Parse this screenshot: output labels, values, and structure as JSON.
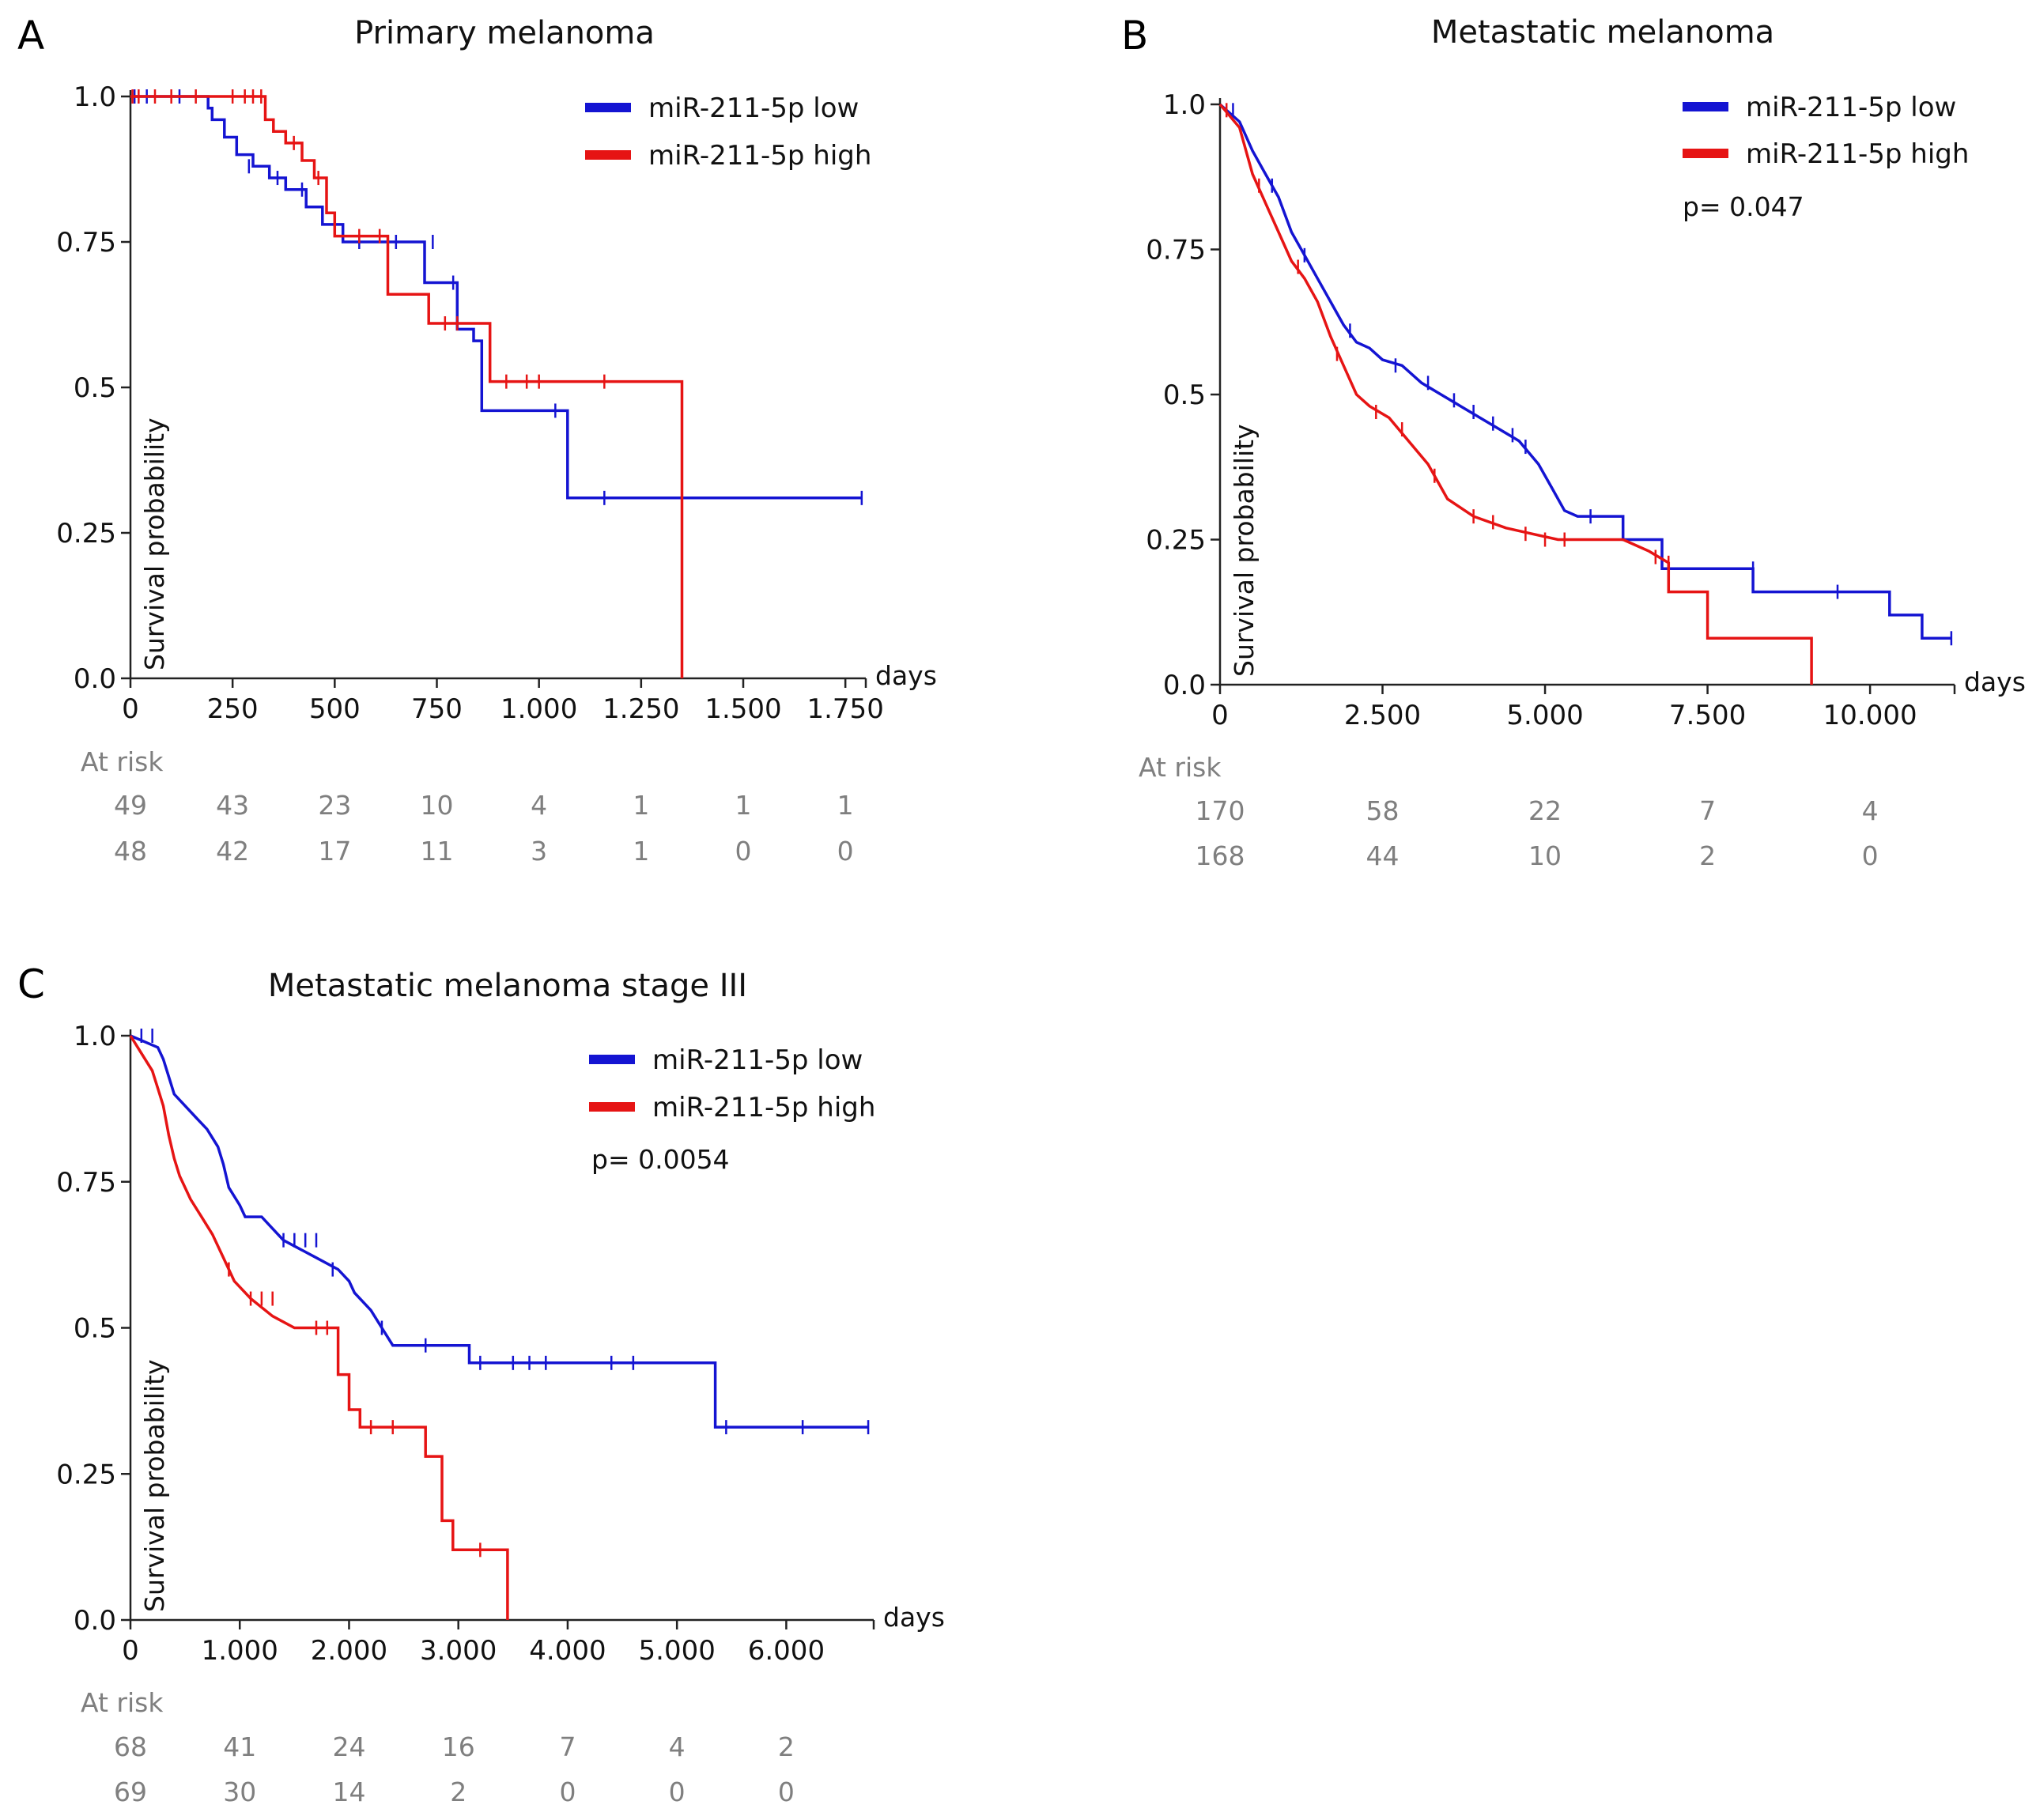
{
  "colors": {
    "low": "#1414d2",
    "high": "#e61414",
    "axis": "#222222",
    "risk": "#7f7f7f"
  },
  "legend": {
    "low_label": "miR-211-5p low",
    "high_label": "miR-211-5p high"
  },
  "chart_data": [
    {
      "type": "line",
      "panel": "A",
      "title": "Primary melanoma",
      "xlabel": "days",
      "ylabel": "Survival probability",
      "xlim": [
        0,
        1800
      ],
      "ylim": [
        0,
        1
      ],
      "xticks": [
        0,
        250,
        500,
        750,
        1000,
        1250,
        1500,
        1750
      ],
      "xtick_labels": [
        "0",
        "250",
        "500",
        "750",
        "1.000",
        "1.250",
        "1.500",
        "1.750"
      ],
      "yticks": [
        0,
        0.25,
        0.5,
        0.75,
        1.0
      ],
      "ytick_labels": [
        "0.0",
        "0.25",
        "0.5",
        "0.75",
        "1.0"
      ],
      "p_value": "",
      "series": [
        {
          "name": "miR-211-5p low",
          "color_key": "low",
          "x": [
            0,
            190,
            190,
            200,
            200,
            230,
            230,
            260,
            260,
            300,
            300,
            340,
            340,
            380,
            380,
            430,
            430,
            470,
            470,
            520,
            520,
            720,
            720,
            800,
            800,
            840,
            840,
            860,
            860,
            1070,
            1070,
            1790
          ],
          "y": [
            1.0,
            1.0,
            0.98,
            0.98,
            0.96,
            0.96,
            0.93,
            0.93,
            0.9,
            0.9,
            0.88,
            0.88,
            0.86,
            0.86,
            0.84,
            0.84,
            0.81,
            0.81,
            0.78,
            0.78,
            0.75,
            0.75,
            0.68,
            0.68,
            0.6,
            0.6,
            0.58,
            0.58,
            0.46,
            0.46,
            0.31,
            0.31
          ],
          "censor_x": [
            10,
            40,
            120,
            290,
            360,
            420,
            480,
            560,
            650,
            740,
            790,
            1040,
            1160,
            1790
          ],
          "censor_y": [
            1.0,
            1.0,
            1.0,
            0.88,
            0.86,
            0.84,
            0.81,
            0.75,
            0.75,
            0.75,
            0.68,
            0.46,
            0.31,
            0.31
          ]
        },
        {
          "name": "miR-211-5p high",
          "color_key": "high",
          "x": [
            0,
            330,
            330,
            350,
            350,
            380,
            380,
            420,
            420,
            450,
            450,
            480,
            480,
            500,
            500,
            630,
            630,
            730,
            730,
            880,
            880,
            1350,
            1350
          ],
          "y": [
            1.0,
            1.0,
            0.96,
            0.96,
            0.94,
            0.94,
            0.92,
            0.92,
            0.89,
            0.89,
            0.86,
            0.86,
            0.8,
            0.8,
            0.76,
            0.76,
            0.66,
            0.66,
            0.61,
            0.61,
            0.51,
            0.51,
            0.0
          ],
          "censor_x": [
            5,
            20,
            60,
            100,
            160,
            250,
            280,
            300,
            320,
            400,
            460,
            560,
            610,
            770,
            800,
            920,
            970,
            1000,
            1160
          ],
          "censor_y": [
            1.0,
            1.0,
            1.0,
            1.0,
            1.0,
            1.0,
            1.0,
            1.0,
            1.0,
            0.92,
            0.86,
            0.76,
            0.76,
            0.61,
            0.61,
            0.51,
            0.51,
            0.51,
            0.51
          ]
        }
      ],
      "at_risk": {
        "label": "At risk",
        "times": [
          0,
          250,
          500,
          750,
          1000,
          1250,
          1500,
          1750
        ],
        "rows": [
          [
            "49",
            "43",
            "23",
            "10",
            "4",
            "1",
            "1",
            "1"
          ],
          [
            "48",
            "42",
            "17",
            "11",
            "3",
            "1",
            "0",
            "0"
          ]
        ]
      }
    },
    {
      "type": "line",
      "panel": "B",
      "title": "Metastatic melanoma",
      "xlabel": "days",
      "ylabel": "Survival probability",
      "xlim": [
        0,
        11300
      ],
      "ylim": [
        0,
        1
      ],
      "xticks": [
        0,
        2500,
        5000,
        7500,
        10000
      ],
      "xtick_labels": [
        "0",
        "2.500",
        "5.000",
        "7.500",
        "10.000"
      ],
      "yticks": [
        0,
        0.25,
        0.5,
        0.75,
        1.0
      ],
      "ytick_labels": [
        "0.0",
        "0.25",
        "0.5",
        "0.75",
        "1.0"
      ],
      "p_value": "p= 0.047",
      "series": [
        {
          "name": "miR-211-5p low",
          "color_key": "low",
          "x": [
            0,
            300,
            500,
            700,
            900,
            1100,
            1300,
            1500,
            1700,
            1900,
            2100,
            2300,
            2500,
            2800,
            3100,
            3400,
            3700,
            4000,
            4300,
            4600,
            4900,
            5100,
            5300,
            5500,
            6200,
            6200,
            6800,
            6800,
            8200,
            8200,
            10300,
            10300,
            10800,
            10800,
            11250,
            11250
          ],
          "y": [
            1.0,
            0.97,
            0.92,
            0.88,
            0.84,
            0.78,
            0.74,
            0.7,
            0.66,
            0.62,
            0.59,
            0.58,
            0.56,
            0.55,
            0.52,
            0.5,
            0.48,
            0.46,
            0.44,
            0.42,
            0.38,
            0.34,
            0.3,
            0.29,
            0.29,
            0.25,
            0.25,
            0.2,
            0.2,
            0.16,
            0.16,
            0.12,
            0.12,
            0.08,
            0.08,
            0.08
          ],
          "censor_x": [
            200,
            800,
            1300,
            2000,
            2700,
            3200,
            3600,
            3900,
            4200,
            4500,
            4700,
            5700,
            6900,
            8200,
            9500,
            11250
          ],
          "censor_y": [
            0.99,
            0.86,
            0.74,
            0.61,
            0.55,
            0.52,
            0.49,
            0.47,
            0.45,
            0.43,
            0.41,
            0.29,
            0.2,
            0.2,
            0.16,
            0.08
          ]
        },
        {
          "name": "miR-211-5p high",
          "color_key": "high",
          "x": [
            0,
            300,
            500,
            700,
            900,
            1100,
            1300,
            1500,
            1700,
            1900,
            2100,
            2300,
            2600,
            2900,
            3200,
            3500,
            3900,
            4400,
            4800,
            5200,
            6200,
            6600,
            6900,
            6900,
            7000,
            7000,
            7500,
            7500,
            9100,
            9100
          ],
          "y": [
            1.0,
            0.96,
            0.88,
            0.83,
            0.78,
            0.73,
            0.7,
            0.66,
            0.6,
            0.55,
            0.5,
            0.48,
            0.46,
            0.42,
            0.38,
            0.32,
            0.29,
            0.27,
            0.26,
            0.25,
            0.25,
            0.23,
            0.21,
            0.16,
            0.16,
            0.16,
            0.16,
            0.08,
            0.08,
            0.0
          ],
          "censor_x": [
            100,
            600,
            1200,
            1800,
            2400,
            2800,
            3300,
            3900,
            4200,
            4700,
            5000,
            5300,
            6700,
            6900
          ],
          "censor_y": [
            0.99,
            0.86,
            0.72,
            0.57,
            0.47,
            0.44,
            0.36,
            0.29,
            0.28,
            0.26,
            0.25,
            0.25,
            0.22,
            0.21
          ]
        }
      ],
      "at_risk": {
        "label": "At risk",
        "times": [
          0,
          2500,
          5000,
          7500,
          10000
        ],
        "rows": [
          [
            "170",
            "58",
            "22",
            "7",
            "4"
          ],
          [
            "168",
            "44",
            "10",
            "2",
            "0"
          ]
        ]
      }
    },
    {
      "type": "line",
      "panel": "C",
      "title": "Metastatic melanoma stage III",
      "xlabel": "days",
      "ylabel": "Survival probability",
      "xlim": [
        0,
        6800
      ],
      "ylim": [
        0,
        1
      ],
      "xticks": [
        0,
        1000,
        2000,
        3000,
        4000,
        5000,
        6000
      ],
      "xtick_labels": [
        "0",
        "1.000",
        "2.000",
        "3.000",
        "4.000",
        "5.000",
        "6.000"
      ],
      "yticks": [
        0,
        0.25,
        0.5,
        0.75,
        1.0
      ],
      "ytick_labels": [
        "0.0",
        "0.25",
        "0.5",
        "0.75",
        "1.0"
      ],
      "p_value": "p= 0.0054",
      "series": [
        {
          "name": "miR-211-5p low",
          "color_key": "low",
          "x": [
            0,
            250,
            300,
            350,
            400,
            500,
            600,
            700,
            800,
            850,
            900,
            1000,
            1050,
            1200,
            1300,
            1400,
            1700,
            1900,
            2000,
            2050,
            2200,
            2300,
            2400,
            2500,
            3100,
            3100,
            5350,
            5350,
            6750
          ],
          "y": [
            1.0,
            0.98,
            0.96,
            0.93,
            0.9,
            0.88,
            0.86,
            0.84,
            0.81,
            0.78,
            0.74,
            0.71,
            0.69,
            0.69,
            0.67,
            0.65,
            0.62,
            0.6,
            0.58,
            0.56,
            0.53,
            0.5,
            0.47,
            0.47,
            0.47,
            0.44,
            0.44,
            0.33,
            0.33
          ],
          "censor_x": [
            100,
            200,
            1400,
            1500,
            1600,
            1700,
            1850,
            2300,
            2700,
            3200,
            3500,
            3650,
            3800,
            4400,
            4600,
            5450,
            6150,
            6750
          ],
          "censor_y": [
            1.0,
            1.0,
            0.65,
            0.65,
            0.65,
            0.65,
            0.6,
            0.5,
            0.47,
            0.44,
            0.44,
            0.44,
            0.44,
            0.44,
            0.44,
            0.33,
            0.33,
            0.33
          ]
        },
        {
          "name": "miR-211-5p high",
          "color_key": "high",
          "x": [
            0,
            100,
            200,
            250,
            300,
            350,
            400,
            450,
            500,
            550,
            650,
            750,
            850,
            950,
            1100,
            1300,
            1500,
            1900,
            1900,
            2000,
            2000,
            2100,
            2100,
            2700,
            2700,
            2850,
            2850,
            2950,
            2950,
            3450,
            3450
          ],
          "y": [
            1.0,
            0.97,
            0.94,
            0.91,
            0.88,
            0.83,
            0.79,
            0.76,
            0.74,
            0.72,
            0.69,
            0.66,
            0.62,
            0.58,
            0.55,
            0.52,
            0.5,
            0.5,
            0.42,
            0.42,
            0.36,
            0.36,
            0.33,
            0.33,
            0.28,
            0.28,
            0.17,
            0.17,
            0.12,
            0.12,
            0.0
          ],
          "censor_x": [
            900,
            1100,
            1200,
            1300,
            1700,
            1800,
            2200,
            2400,
            3200
          ],
          "censor_y": [
            0.6,
            0.55,
            0.55,
            0.55,
            0.5,
            0.5,
            0.33,
            0.33,
            0.12
          ]
        }
      ],
      "at_risk": {
        "label": "At risk",
        "times": [
          0,
          1000,
          2000,
          3000,
          4000,
          5000,
          6000
        ],
        "rows": [
          [
            "68",
            "41",
            "24",
            "16",
            "7",
            "4",
            "2"
          ],
          [
            "69",
            "30",
            "14",
            "2",
            "0",
            "0",
            "0"
          ]
        ]
      }
    }
  ]
}
